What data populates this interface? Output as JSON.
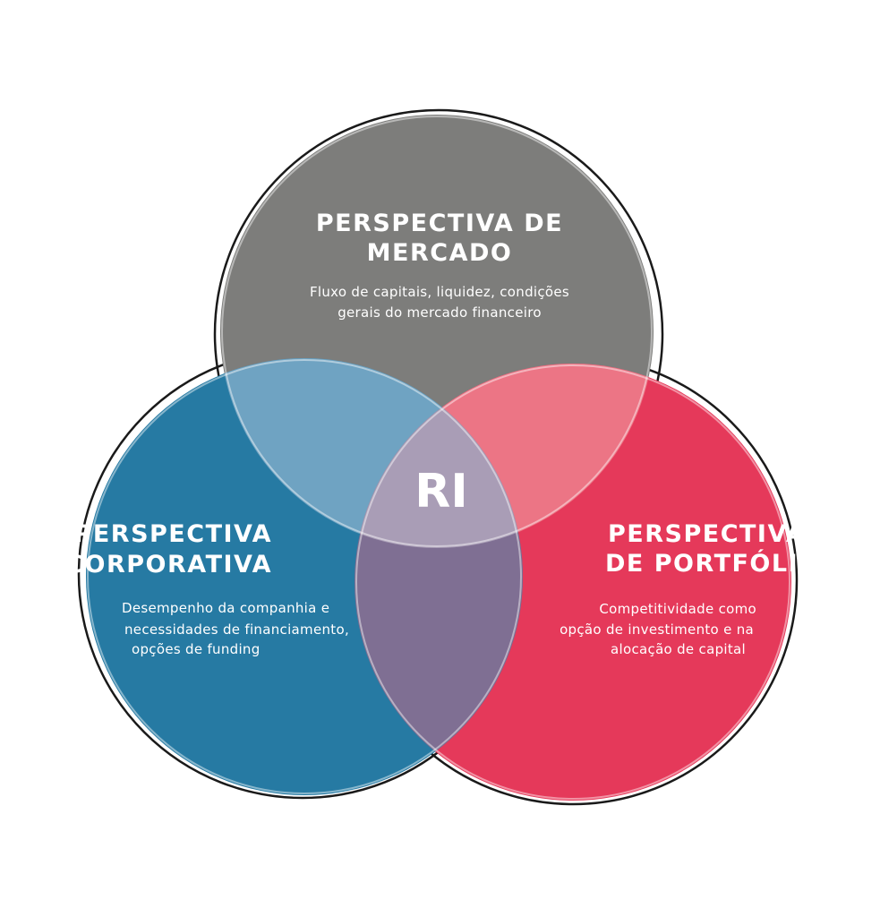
{
  "colors": {
    "market": "#7d7d7b",
    "corporate": "#267aa3",
    "portfolio": "#e5395a",
    "outline": "#1a1a1a",
    "text": "#ffffff"
  },
  "market": {
    "title_line1": "PERSPECTIVA DE",
    "title_line2": "MERCADO",
    "desc_line1": "Fluxo de capitais, liquidez, condições",
    "desc_line2": "gerais do mercado financeiro"
  },
  "corporate": {
    "title_line1": "PERSPECTIVA",
    "title_line2": "CORPORATIVA",
    "desc_line1": "Desempenho da companhia e",
    "desc_line2": "necessidades de financiamento,",
    "desc_line3": "opções de funding"
  },
  "portfolio": {
    "title_line1": "PERSPECTIVA",
    "title_line2": "DE PORTFÓLIO",
    "desc_line1": "Competitividade como",
    "desc_line2": "opção de investimento e na",
    "desc_line3": "alocação de capital"
  },
  "center": {
    "label": "RI"
  }
}
